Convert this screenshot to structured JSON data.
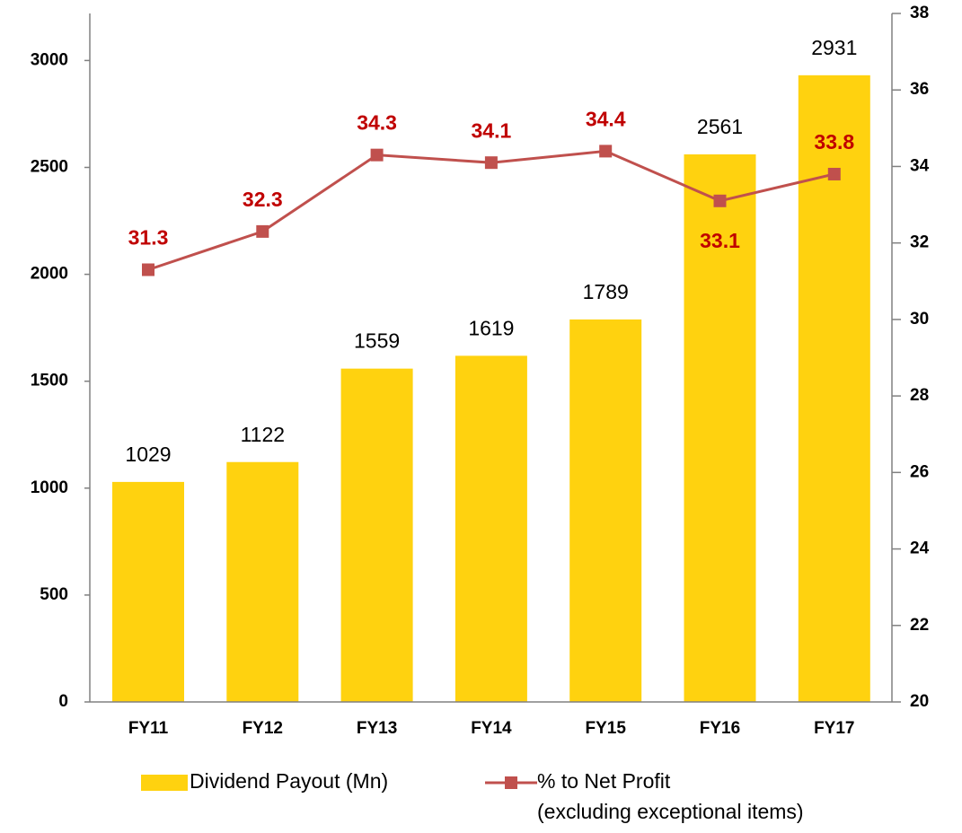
{
  "chart_data": {
    "type": "bar+line",
    "categories": [
      "FY11",
      "FY12",
      "FY13",
      "FY14",
      "FY15",
      "FY16",
      "FY17"
    ],
    "series": [
      {
        "name": "Dividend Payout (Mn)",
        "type": "bar",
        "color": "#FFD20F",
        "values": [
          1029,
          1122,
          1559,
          1619,
          1789,
          2561,
          2931
        ]
      },
      {
        "name": "% to Net Profit\n(excluding exceptional items)",
        "type": "line",
        "axis": "y2",
        "color": "#C0504D",
        "label_color": "#C00000",
        "values": [
          31.3,
          32.3,
          34.3,
          34.1,
          34.4,
          33.1,
          33.8
        ]
      }
    ],
    "ylim": [
      0,
      3220
    ],
    "yticks": [
      0,
      500,
      1000,
      1500,
      2000,
      2500,
      3000
    ],
    "y2lim": [
      20,
      38
    ],
    "y2ticks": [
      20,
      22,
      24,
      26,
      28,
      30,
      32,
      34,
      36,
      38
    ],
    "legend": "bottom"
  }
}
